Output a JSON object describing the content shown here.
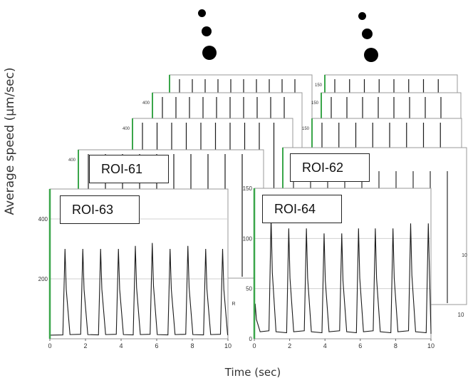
{
  "figure": {
    "ylabel": "Average speed (μm/sec)",
    "xlabel": "Time (sec)",
    "colors": {
      "trace": "#1a1a1a",
      "axis_accent": "#3aa64a",
      "grid": "#d0d0d0",
      "frame": "#999999"
    }
  },
  "chart_data": [
    {
      "type": "line",
      "name": "ROI-63",
      "x_ticks": [
        0,
        2,
        4,
        6,
        8,
        10
      ],
      "y_ticks": [
        200,
        400
      ],
      "xlim": [
        0,
        10
      ],
      "ylim": [
        0,
        500
      ],
      "baseline": 12,
      "peaks": [
        {
          "x": 0.85,
          "y": 300
        },
        {
          "x": 1.85,
          "y": 300
        },
        {
          "x": 2.85,
          "y": 300
        },
        {
          "x": 3.85,
          "y": 300
        },
        {
          "x": 4.8,
          "y": 310
        },
        {
          "x": 5.75,
          "y": 320
        },
        {
          "x": 6.75,
          "y": 300
        },
        {
          "x": 7.75,
          "y": 310
        },
        {
          "x": 8.75,
          "y": 300
        },
        {
          "x": 9.7,
          "y": 300
        }
      ],
      "grid": true
    },
    {
      "type": "line",
      "name": "ROI-64",
      "x_ticks": [
        0,
        2,
        4,
        6,
        8,
        10
      ],
      "y_ticks": [
        0,
        50,
        100,
        150
      ],
      "xlim": [
        0,
        10
      ],
      "ylim": [
        0,
        150
      ],
      "baseline": 5,
      "peaks": [
        {
          "x": 0.05,
          "y": 35
        },
        {
          "x": 0.95,
          "y": 120
        },
        {
          "x": 1.95,
          "y": 110
        },
        {
          "x": 2.95,
          "y": 110
        },
        {
          "x": 3.95,
          "y": 105
        },
        {
          "x": 4.95,
          "y": 105
        },
        {
          "x": 5.9,
          "y": 110
        },
        {
          "x": 6.85,
          "y": 110
        },
        {
          "x": 7.85,
          "y": 110
        },
        {
          "x": 8.85,
          "y": 115
        },
        {
          "x": 9.85,
          "y": 115
        }
      ],
      "grid": true
    },
    {
      "type": "line",
      "name": "ROI-61",
      "y_ticks": [
        400
      ]
    },
    {
      "type": "line",
      "name": "ROI-62",
      "y_ticks": []
    }
  ],
  "back_panels": {
    "left": [
      {
        "y_ticks": [
          400
        ]
      },
      {
        "y_ticks": [
          400
        ]
      },
      {
        "y_ticks": []
      }
    ],
    "right": [
      {
        "y_ticks": [
          150
        ],
        "x_ticks_right": [
          10
        ]
      },
      {
        "y_ticks": [
          150
        ],
        "x_ticks_right": [
          10
        ]
      },
      {
        "y_ticks": [
          150
        ],
        "x_ticks_right": [
          10
        ]
      }
    ]
  },
  "extra_labels": {
    "rotated_tick": "R"
  }
}
